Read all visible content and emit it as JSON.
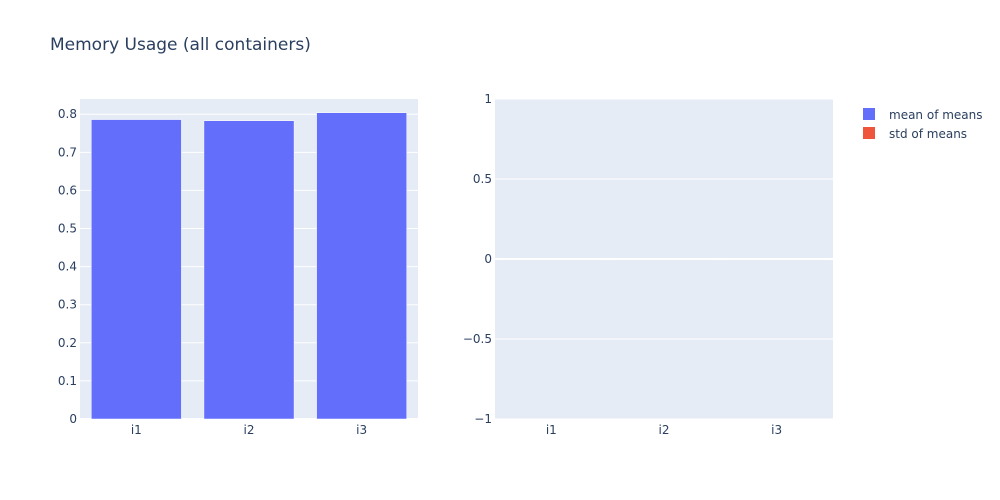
{
  "colors": {
    "plot_bg": "#e5ecf6",
    "grid": "#ffffff",
    "text": "#2a3f5f",
    "mean_series": "#636efa",
    "std_series": "#ef553b"
  },
  "chart_data": {
    "title": "Memory Usage (all containers)",
    "legend_position": "top-right",
    "legend": [
      "mean of means",
      "std of means"
    ],
    "subplots": [
      {
        "type": "bar",
        "categories": [
          "i1",
          "i2",
          "i3"
        ],
        "series": [
          {
            "name": "mean of means",
            "values": [
              0.786,
              0.783,
              0.804
            ]
          }
        ],
        "ylim": [
          0,
          0.84
        ],
        "yticks": [
          0,
          0.1,
          0.2,
          0.3,
          0.4,
          0.5,
          0.6,
          0.7,
          0.8
        ],
        "ytick_labels": [
          "0",
          "0.1",
          "0.2",
          "0.3",
          "0.4",
          "0.5",
          "0.6",
          "0.7",
          "0.8"
        ],
        "grid": true
      },
      {
        "type": "bar",
        "categories": [
          "i1",
          "i2",
          "i3"
        ],
        "series": [
          {
            "name": "std of means",
            "values": [
              0,
              0,
              0
            ]
          }
        ],
        "ylim": [
          -1,
          1
        ],
        "yticks": [
          -1,
          -0.5,
          0,
          0.5,
          1
        ],
        "ytick_labels": [
          "−1",
          "−0.5",
          "0",
          "0.5",
          "1"
        ],
        "grid": true
      }
    ]
  }
}
